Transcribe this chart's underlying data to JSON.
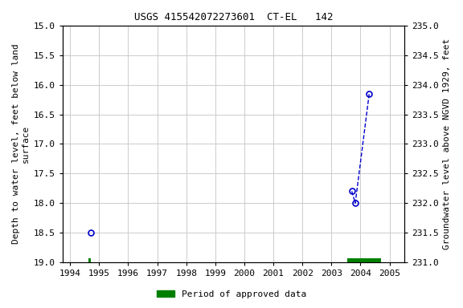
{
  "title": "USGS 415542072273601  CT-EL   142",
  "ylabel_left": "Depth to water level, feet below land\nsurface",
  "ylabel_right": "Groundwater level above NGVD 1929, feet",
  "xlim": [
    1993.75,
    2005.5
  ],
  "ylim_left": [
    15.0,
    19.0
  ],
  "ylim_right_top": 235.0,
  "ylim_right_bottom": 231.0,
  "xticks": [
    1994,
    1995,
    1996,
    1997,
    1998,
    1999,
    2000,
    2001,
    2002,
    2003,
    2004,
    2005
  ],
  "yticks_left": [
    15.0,
    15.5,
    16.0,
    16.5,
    17.0,
    17.5,
    18.0,
    18.5,
    19.0
  ],
  "yticks_right": [
    235.0,
    234.5,
    234.0,
    233.5,
    233.0,
    232.5,
    232.0,
    231.5,
    231.0
  ],
  "isolated_point_x": [
    1994.7
  ],
  "isolated_point_y": [
    18.5
  ],
  "connected_points_x": [
    2003.7,
    2003.82,
    2004.3
  ],
  "connected_points_y": [
    17.8,
    18.0,
    16.15
  ],
  "line_color": "#0000cc",
  "marker_color": "#0000cc",
  "background_color": "#ffffff",
  "grid_color": "#cccccc",
  "approved_bar1_x_start": 1994.62,
  "approved_bar1_x_end": 1994.72,
  "approved_bar2_x_start": 2003.55,
  "approved_bar2_x_end": 2004.7,
  "approved_color": "#008000",
  "legend_label": "Period of approved data",
  "title_fontsize": 9,
  "tick_fontsize": 8,
  "label_fontsize": 8
}
